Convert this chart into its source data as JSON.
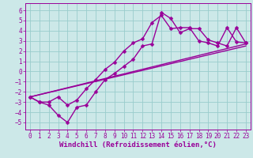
{
  "background_color": "#cce8e8",
  "grid_color": "#99cccc",
  "line_color": "#990099",
  "markersize": 2.5,
  "linewidth": 1.0,
  "xlabel": "Windchill (Refroidissement éolien,°C)",
  "xlabel_fontsize": 6.5,
  "tick_fontsize": 5.5,
  "xlim": [
    -0.5,
    23.5
  ],
  "ylim": [
    -5.7,
    6.7
  ],
  "yticks": [
    -5,
    -4,
    -3,
    -2,
    -1,
    0,
    1,
    2,
    3,
    4,
    5,
    6
  ],
  "xticks": [
    0,
    1,
    2,
    3,
    4,
    5,
    6,
    7,
    8,
    9,
    10,
    11,
    12,
    13,
    14,
    15,
    16,
    17,
    18,
    19,
    20,
    21,
    22,
    23
  ],
  "series1": {
    "x": [
      0,
      1,
      2,
      3,
      4,
      5,
      6,
      7,
      8,
      9,
      10,
      11,
      12,
      13,
      14,
      15,
      16,
      17,
      18,
      19,
      20,
      21,
      22,
      23
    ],
    "y": [
      -2.5,
      -3.0,
      -3.0,
      -2.5,
      -3.3,
      -2.8,
      -1.7,
      -0.8,
      0.2,
      0.9,
      2.0,
      2.8,
      3.2,
      4.8,
      5.5,
      4.2,
      4.3,
      4.3,
      3.0,
      2.8,
      2.5,
      4.3,
      2.9,
      2.8
    ]
  },
  "series2": {
    "x": [
      0,
      1,
      2,
      3,
      4,
      5,
      6,
      7,
      8,
      9,
      10,
      11,
      12,
      13,
      14,
      15,
      16,
      17,
      18,
      19,
      20,
      21,
      22,
      23
    ],
    "y": [
      -2.5,
      -3.0,
      -3.3,
      -4.3,
      -5.0,
      -3.5,
      -3.3,
      -2.0,
      -0.8,
      -0.2,
      0.5,
      1.2,
      2.5,
      2.7,
      5.8,
      5.2,
      3.8,
      4.2,
      4.2,
      3.1,
      2.8,
      2.5,
      4.3,
      2.8
    ]
  },
  "line1": {
    "x": [
      0,
      23
    ],
    "y": [
      -2.5,
      2.7
    ]
  },
  "line2": {
    "x": [
      0,
      23
    ],
    "y": [
      -2.5,
      2.5
    ]
  }
}
